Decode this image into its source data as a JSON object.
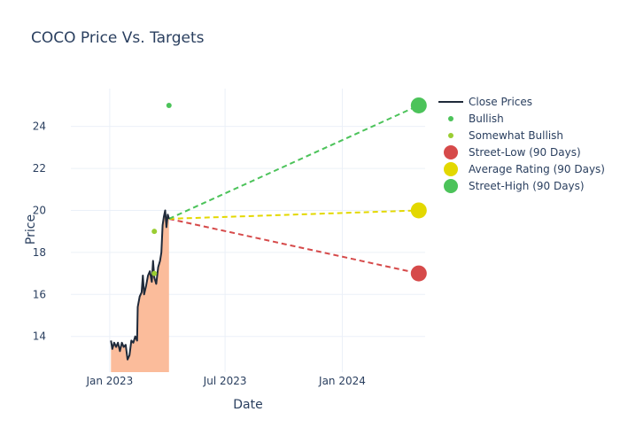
{
  "chart_data": {
    "type": "line",
    "title": "COCO Price Vs. Targets",
    "xlabel": "Date",
    "ylabel": "Price",
    "xlim": [
      "2022-11-01",
      "2024-05-10"
    ],
    "ylim": [
      12.3,
      25.8
    ],
    "grid": true,
    "legend_position": "right",
    "x_ticks": [
      {
        "date": "2023-01-01",
        "label": "Jan 2023"
      },
      {
        "date": "2023-07-01",
        "label": "Jul 2023"
      },
      {
        "date": "2024-01-01",
        "label": "Jan 2024"
      }
    ],
    "y_ticks": [
      14,
      16,
      18,
      20,
      22,
      24
    ],
    "close_prices": {
      "name": "Close Prices",
      "color": "#1f2a3a",
      "fill_color": "#fbbc9b",
      "points": [
        [
          "2023-01-03",
          13.8
        ],
        [
          "2023-01-05",
          13.4
        ],
        [
          "2023-01-08",
          13.7
        ],
        [
          "2023-01-11",
          13.5
        ],
        [
          "2023-01-14",
          13.7
        ],
        [
          "2023-01-17",
          13.3
        ],
        [
          "2023-01-20",
          13.7
        ],
        [
          "2023-01-23",
          13.5
        ],
        [
          "2023-01-26",
          13.6
        ],
        [
          "2023-01-29",
          12.9
        ],
        [
          "2023-02-01",
          13.1
        ],
        [
          "2023-02-04",
          13.8
        ],
        [
          "2023-02-07",
          13.7
        ],
        [
          "2023-02-10",
          14.0
        ],
        [
          "2023-02-13",
          13.8
        ],
        [
          "2023-02-14",
          15.4
        ],
        [
          "2023-02-17",
          15.9
        ],
        [
          "2023-02-20",
          16.1
        ],
        [
          "2023-02-22",
          16.9
        ],
        [
          "2023-02-24",
          16.0
        ],
        [
          "2023-02-27",
          16.4
        ],
        [
          "2023-03-02",
          16.9
        ],
        [
          "2023-03-05",
          17.1
        ],
        [
          "2023-03-08",
          16.6
        ],
        [
          "2023-03-10",
          17.6
        ],
        [
          "2023-03-12",
          16.8
        ],
        [
          "2023-03-15",
          16.5
        ],
        [
          "2023-03-18",
          17.3
        ],
        [
          "2023-03-21",
          17.6
        ],
        [
          "2023-03-23",
          18.0
        ],
        [
          "2023-03-25",
          19.3
        ],
        [
          "2023-03-27",
          19.7
        ],
        [
          "2023-03-29",
          20.0
        ],
        [
          "2023-03-31",
          19.2
        ],
        [
          "2023-04-02",
          19.8
        ],
        [
          "2023-04-04",
          19.6
        ]
      ]
    },
    "ratings": [
      {
        "name": "Bullish",
        "color": "#4cc35a",
        "points": [
          [
            "2023-04-04",
            25.0
          ]
        ]
      },
      {
        "name": "Somewhat Bullish",
        "color": "#9acd32",
        "points": [
          [
            "2023-03-12",
            19.0
          ],
          [
            "2023-03-12",
            17.0
          ]
        ]
      }
    ],
    "targets": [
      {
        "name": "Street-Low (90 Days)",
        "color": "#d64a4a",
        "from": [
          "2023-04-04",
          19.6
        ],
        "to": [
          "2024-04-30",
          17.0
        ]
      },
      {
        "name": "Average Rating (90 Days)",
        "color": "#e3d800",
        "from": [
          "2023-04-04",
          19.6
        ],
        "to": [
          "2024-04-30",
          20.0
        ]
      },
      {
        "name": "Street-High (90 Days)",
        "color": "#4cc35a",
        "from": [
          "2023-04-04",
          19.6
        ],
        "to": [
          "2024-04-30",
          25.0
        ]
      }
    ]
  }
}
